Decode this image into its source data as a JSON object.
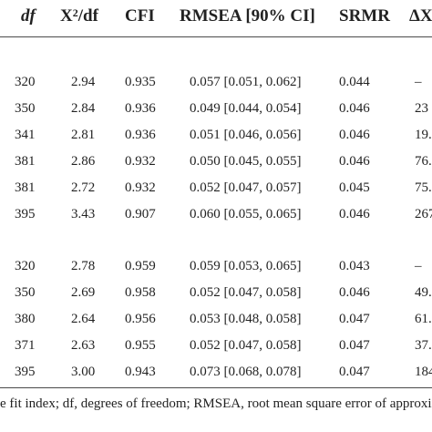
{
  "table": {
    "headers": {
      "df": "df",
      "x2_base": "X",
      "x2_sup": "2",
      "x2_tail": "/df",
      "cfi": "CFI",
      "rmsea": "RMSEA [90% CI]",
      "srmr": "SRMR",
      "delta": "ΔX"
    },
    "group1": [
      {
        "df": "320",
        "x2df": "2.94",
        "cfi": "0.935",
        "rmsea": "0.057 [0.051, 0.062]",
        "srmr": "0.044",
        "delta": "–"
      },
      {
        "df": "350",
        "x2df": "2.84",
        "cfi": "0.936",
        "rmsea": "0.049 [0.044, 0.054]",
        "srmr": "0.046",
        "delta": "23"
      },
      {
        "df": "341",
        "x2df": "2.81",
        "cfi": "0.936",
        "rmsea": "0.051 [0.046, 0.056]",
        "srmr": "0.046",
        "delta": "19."
      },
      {
        "df": "381",
        "x2df": "2.86",
        "cfi": "0.932",
        "rmsea": "0.050 [0.045, 0.055]",
        "srmr": "0.046",
        "delta": "76."
      },
      {
        "df": "381",
        "x2df": "2.72",
        "cfi": "0.932",
        "rmsea": "0.052 [0.047, 0.057]",
        "srmr": "0.045",
        "delta": "75."
      },
      {
        "df": "395",
        "x2df": "3.43",
        "cfi": "0.907",
        "rmsea": "0.060 [0.055, 0.065]",
        "srmr": "0.046",
        "delta": "267"
      }
    ],
    "group2": [
      {
        "df": "320",
        "x2df": "2.78",
        "cfi": "0.959",
        "rmsea": "0.059 [0.053, 0.065]",
        "srmr": "0.043",
        "delta": "–"
      },
      {
        "df": "350",
        "x2df": "2.69",
        "cfi": "0.958",
        "rmsea": "0.052 [0.047, 0.058]",
        "srmr": "0.046",
        "delta": "49."
      },
      {
        "df": "380",
        "x2df": "2.64",
        "cfi": "0.956",
        "rmsea": "0.053 [0.048, 0.058]",
        "srmr": "0.047",
        "delta": "61."
      },
      {
        "df": "371",
        "x2df": "2.63",
        "cfi": "0.955",
        "rmsea": "0.052 [0.047, 0.058]",
        "srmr": "0.047",
        "delta": "37."
      },
      {
        "df": "395",
        "x2df": "3.00",
        "cfi": "0.943",
        "rmsea": "0.073 [0.068, 0.078]",
        "srmr": "0.047",
        "delta": "184"
      }
    ]
  },
  "footnote": "e fit index; df, degrees of freedom; RMSEA, root mean square error of approximat"
}
